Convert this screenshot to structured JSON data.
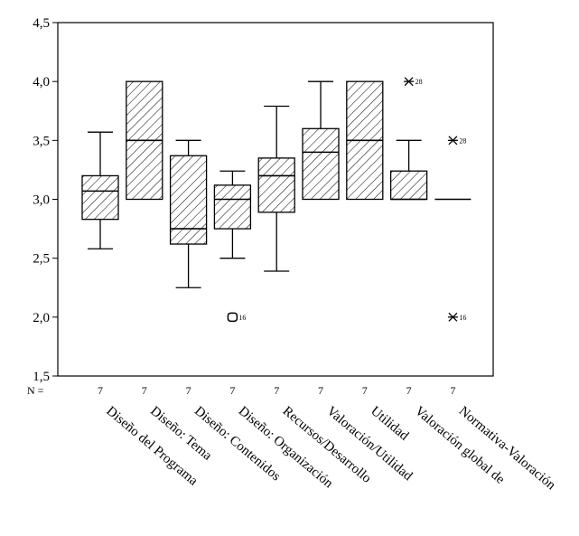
{
  "chart_data": {
    "type": "boxplot",
    "ylim": [
      1.5,
      4.5
    ],
    "y_ticks": [
      "1,5",
      "2,0",
      "2,5",
      "3,0",
      "3,5",
      "4,0",
      "4,5"
    ],
    "y_tick_values": [
      1.5,
      2.0,
      2.5,
      3.0,
      3.5,
      4.0,
      4.5
    ],
    "n_label": "N =",
    "fill_pattern": "diagonal-hatch",
    "categories": [
      "Diseño del Programa",
      "Diseño: Tema",
      "Diseño: Contenidos",
      "Diseño: Organización",
      "Recursos/Desarrollo",
      "Valoración/Utilidad",
      "Utilidad",
      "Valoración global de",
      "Normativa-Valoración"
    ],
    "n_values": [
      "7",
      "7",
      "7",
      "7",
      "7",
      "7",
      "7",
      "7",
      "7"
    ],
    "boxes": [
      {
        "whisker_low": 2.58,
        "q1": 2.83,
        "median": 3.07,
        "q3": 3.2,
        "whisker_high": 3.57
      },
      {
        "whisker_low": 3.0,
        "q1": 3.0,
        "median": 3.5,
        "q3": 4.0,
        "whisker_high": 4.0
      },
      {
        "whisker_low": 2.25,
        "q1": 2.62,
        "median": 2.75,
        "q3": 3.37,
        "whisker_high": 3.5
      },
      {
        "whisker_low": 2.5,
        "q1": 2.75,
        "median": 3.0,
        "q3": 3.12,
        "whisker_high": 3.24
      },
      {
        "whisker_low": 2.39,
        "q1": 2.89,
        "median": 3.2,
        "q3": 3.35,
        "whisker_high": 3.79
      },
      {
        "whisker_low": 3.0,
        "q1": 3.0,
        "median": 3.4,
        "q3": 3.6,
        "whisker_high": 4.0
      },
      {
        "whisker_low": 3.0,
        "q1": 3.0,
        "median": 3.5,
        "q3": 4.0,
        "whisker_high": 4.0
      },
      {
        "whisker_low": 3.0,
        "q1": 3.0,
        "median": 3.0,
        "q3": 3.24,
        "whisker_high": 3.5
      },
      {
        "whisker_low": 3.0,
        "q1": 3.0,
        "median": 3.0,
        "q3": 3.0,
        "whisker_high": 3.0
      }
    ],
    "outliers": [
      {
        "category_index": 3,
        "value": 2.0,
        "marker": "circle",
        "label": "16"
      },
      {
        "category_index": 7,
        "value": 4.0,
        "marker": "star",
        "label": "28"
      },
      {
        "category_index": 8,
        "value": 3.5,
        "marker": "star",
        "label": "28"
      },
      {
        "category_index": 8,
        "value": 2.0,
        "marker": "star",
        "label": "16"
      }
    ]
  }
}
